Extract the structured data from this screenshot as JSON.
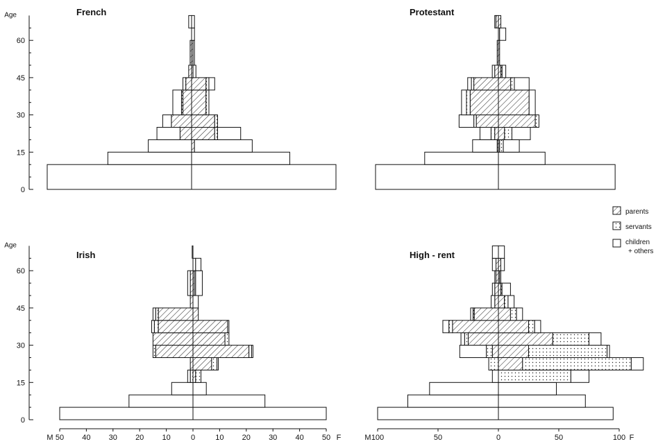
{
  "legend": {
    "items": [
      {
        "key": "parents",
        "label": "parents",
        "pattern": "hatch"
      },
      {
        "key": "servants",
        "label": "servants",
        "pattern": "dots"
      },
      {
        "key": "children",
        "label": "children",
        "label2": "+ others",
        "pattern": "empty"
      }
    ]
  },
  "colors": {
    "ink": "#111111",
    "background": "#ffffff"
  },
  "chart_data": [
    {
      "type": "bar",
      "subtype": "age-sex pyramid",
      "title": "French",
      "ylabel": "Age",
      "y_ticks": [
        0,
        15,
        30,
        45,
        60
      ],
      "ylim": [
        0,
        70
      ],
      "x_max": 50,
      "x_ticks": [],
      "groups": [
        {
          "age_start": 0,
          "M": {
            "parents": 0,
            "servants": 0,
            "children": 50
          },
          "F": {
            "parents": 0,
            "servants": 0,
            "children": 50
          }
        },
        {
          "age_start": 10,
          "M": {
            "parents": 0,
            "servants": 0,
            "children": 29
          },
          "F": {
            "parents": 0,
            "servants": 0,
            "children": 34
          }
        },
        {
          "age_start": 15,
          "M": {
            "parents": 0,
            "servants": 0,
            "children": 15
          },
          "F": {
            "parents": 1,
            "servants": 0,
            "children": 20
          }
        },
        {
          "age_start": 20,
          "M": {
            "parents": 4,
            "servants": 0,
            "children": 8
          },
          "F": {
            "parents": 8,
            "servants": 1,
            "children": 8
          }
        },
        {
          "age_start": 25,
          "M": {
            "parents": 7,
            "servants": 0,
            "children": 3
          },
          "F": {
            "parents": 8,
            "servants": 1,
            "children": 0
          }
        },
        {
          "age_start": 30,
          "M": {
            "parents": 3,
            "servants": 0.5,
            "children": 3
          },
          "F": {
            "parents": 5,
            "servants": 1,
            "children": 0
          }
        },
        {
          "age_start": 40,
          "M": {
            "parents": 2,
            "servants": 1,
            "children": 0
          },
          "F": {
            "parents": 5,
            "servants": 1,
            "children": 2
          }
        },
        {
          "age_start": 45,
          "M": {
            "parents": 1,
            "servants": 0,
            "children": 0
          },
          "F": {
            "parents": 0.5,
            "servants": 0,
            "children": 1
          }
        },
        {
          "age_start": 50,
          "M": {
            "parents": 0.5,
            "servants": 0,
            "children": 0
          },
          "F": {
            "parents": 0.5,
            "servants": 0,
            "children": 0.5
          }
        },
        {
          "age_start": 60,
          "M": {
            "parents": 0,
            "servants": 0,
            "children": 0
          },
          "F": {
            "parents": 0,
            "servants": 0,
            "children": 1
          }
        },
        {
          "age_start": 65,
          "M": {
            "parents": 0,
            "servants": 0,
            "children": 1
          },
          "F": {
            "parents": 0,
            "servants": 0,
            "children": 1
          }
        }
      ]
    },
    {
      "type": "bar",
      "subtype": "age-sex pyramid",
      "title": "Protestant",
      "ylabel": "",
      "y_ticks": [],
      "ylim": [
        0,
        70
      ],
      "x_max": 100,
      "x_ticks": [],
      "groups": [
        {
          "age_start": 0,
          "M": {
            "parents": 0,
            "servants": 0,
            "children": 100
          },
          "F": {
            "parents": 0,
            "servants": 0,
            "children": 95
          }
        },
        {
          "age_start": 10,
          "M": {
            "parents": 0,
            "servants": 0,
            "children": 60
          },
          "F": {
            "parents": 0,
            "servants": 0,
            "children": 38
          }
        },
        {
          "age_start": 15,
          "M": {
            "parents": 0,
            "servants": 1,
            "children": 20
          },
          "F": {
            "parents": 1,
            "servants": 3,
            "children": 13
          }
        },
        {
          "age_start": 20,
          "M": {
            "parents": 3,
            "servants": 3,
            "children": 9
          },
          "F": {
            "parents": 5,
            "servants": 6,
            "children": 15
          }
        },
        {
          "age_start": 25,
          "M": {
            "parents": 18,
            "servants": 2,
            "children": 12
          },
          "F": {
            "parents": 30,
            "servants": 3,
            "children": 0
          }
        },
        {
          "age_start": 30,
          "M": {
            "parents": 23,
            "servants": 3,
            "children": 4
          },
          "F": {
            "parents": 25,
            "servants": 0,
            "children": 5
          }
        },
        {
          "age_start": 40,
          "M": {
            "parents": 20,
            "servants": 2,
            "children": 3
          },
          "F": {
            "parents": 10,
            "servants": 3,
            "children": 12
          }
        },
        {
          "age_start": 45,
          "M": {
            "parents": 3,
            "servants": 0,
            "children": 2
          },
          "F": {
            "parents": 2,
            "servants": 1,
            "children": 3
          }
        },
        {
          "age_start": 50,
          "M": {
            "parents": 1,
            "servants": 0,
            "children": 0
          },
          "F": {
            "parents": 1,
            "servants": 0,
            "children": 0
          }
        },
        {
          "age_start": 60,
          "M": {
            "parents": 0,
            "servants": 0,
            "children": 0
          },
          "F": {
            "parents": 0,
            "servants": 1,
            "children": 5
          }
        },
        {
          "age_start": 65,
          "M": {
            "parents": 2,
            "servants": 0,
            "children": 1
          },
          "F": {
            "parents": 2,
            "servants": 0,
            "children": 0
          }
        }
      ]
    },
    {
      "type": "bar",
      "subtype": "age-sex pyramid",
      "title": "Irish",
      "xlabel": "",
      "ylabel": "Age",
      "y_ticks": [
        0,
        15,
        30,
        45,
        60
      ],
      "ylim": [
        0,
        70
      ],
      "x_max": 50,
      "x_ticks": [
        50,
        40,
        30,
        20,
        10,
        0,
        10,
        20,
        30,
        40,
        50
      ],
      "x_left_label": "M",
      "x_right_label": "F",
      "groups": [
        {
          "age_start": 0,
          "M": {
            "parents": 0,
            "servants": 0,
            "children": 50
          },
          "F": {
            "parents": 0,
            "servants": 0,
            "children": 50
          }
        },
        {
          "age_start": 5,
          "M": {
            "parents": 0,
            "servants": 0,
            "children": 24
          },
          "F": {
            "parents": 0,
            "servants": 0,
            "children": 27
          }
        },
        {
          "age_start": 10,
          "M": {
            "parents": 0,
            "servants": 0,
            "children": 8
          },
          "F": {
            "parents": 0,
            "servants": 0,
            "children": 5
          }
        },
        {
          "age_start": 15,
          "M": {
            "parents": 0,
            "servants": 1,
            "children": 1
          },
          "F": {
            "parents": 1,
            "servants": 2,
            "children": 0
          }
        },
        {
          "age_start": 20,
          "M": {
            "parents": 1,
            "servants": 0,
            "children": 0
          },
          "F": {
            "parents": 7,
            "servants": 2,
            "children": 0.5
          }
        },
        {
          "age_start": 25,
          "M": {
            "parents": 14,
            "servants": 1,
            "children": 0
          },
          "F": {
            "parents": 21,
            "servants": 1,
            "children": 0.5
          }
        },
        {
          "age_start": 30,
          "M": {
            "parents": 15,
            "servants": 0,
            "children": 0
          },
          "F": {
            "parents": 12,
            "servants": 1.5,
            "children": 0
          }
        },
        {
          "age_start": 35,
          "M": {
            "parents": 13,
            "servants": 1.5,
            "children": 1
          },
          "F": {
            "parents": 13,
            "servants": 0.5,
            "children": 0
          }
        },
        {
          "age_start": 40,
          "M": {
            "parents": 13,
            "servants": 1,
            "children": 1
          },
          "F": {
            "parents": 2,
            "servants": 0,
            "children": 0
          }
        },
        {
          "age_start": 45,
          "M": {
            "parents": 1,
            "servants": 0,
            "children": 0
          },
          "F": {
            "parents": 0,
            "servants": 0,
            "children": 2
          }
        },
        {
          "age_start": 50,
          "M": {
            "parents": 1,
            "servants": 0,
            "children": 1
          },
          "F": {
            "parents": 0.5,
            "servants": 0.5,
            "children": 2.5
          }
        },
        {
          "age_start": 60,
          "M": {
            "parents": 0,
            "servants": 0,
            "children": 0
          },
          "F": {
            "parents": 0,
            "servants": 1,
            "children": 2
          }
        },
        {
          "age_start": 65,
          "M": {
            "parents": 0,
            "servants": 0,
            "children": 0.3
          },
          "F": {
            "parents": 0,
            "servants": 0,
            "children": 0
          }
        }
      ]
    },
    {
      "type": "bar",
      "subtype": "age-sex pyramid",
      "title": "High - rent",
      "xlabel": "",
      "ylabel": "",
      "y_ticks": [],
      "ylim": [
        0,
        70
      ],
      "x_max": 100,
      "x_ticks": [
        100,
        50,
        0,
        50,
        100
      ],
      "x_left_label": "M",
      "x_right_label": "F",
      "groups": [
        {
          "age_start": 0,
          "M": {
            "parents": 0,
            "servants": 0,
            "children": 100
          },
          "F": {
            "parents": 0,
            "servants": 0,
            "children": 95
          }
        },
        {
          "age_start": 5,
          "M": {
            "parents": 0,
            "servants": 0,
            "children": 75
          },
          "F": {
            "parents": 0,
            "servants": 0,
            "children": 72
          }
        },
        {
          "age_start": 10,
          "M": {
            "parents": 0,
            "servants": 0,
            "children": 57
          },
          "F": {
            "parents": 0,
            "servants": 0,
            "children": 48
          }
        },
        {
          "age_start": 15,
          "M": {
            "parents": 0,
            "servants": 0,
            "children": 5
          },
          "F": {
            "parents": 0,
            "servants": 60,
            "children": 15
          }
        },
        {
          "age_start": 20,
          "M": {
            "parents": 0,
            "servants": 8,
            "children": 0
          },
          "F": {
            "parents": 20,
            "servants": 90,
            "children": 10
          }
        },
        {
          "age_start": 25,
          "M": {
            "parents": 5,
            "servants": 5,
            "children": 22
          },
          "F": {
            "parents": 25,
            "servants": 65,
            "children": 2
          }
        },
        {
          "age_start": 30,
          "M": {
            "parents": 25,
            "servants": 3,
            "children": 3
          },
          "F": {
            "parents": 45,
            "servants": 30,
            "children": 10
          }
        },
        {
          "age_start": 35,
          "M": {
            "parents": 38,
            "servants": 3,
            "children": 5
          },
          "F": {
            "parents": 25,
            "servants": 5,
            "children": 5
          }
        },
        {
          "age_start": 40,
          "M": {
            "parents": 20,
            "servants": 1,
            "children": 2
          },
          "F": {
            "parents": 10,
            "servants": 5,
            "children": 5
          }
        },
        {
          "age_start": 45,
          "M": {
            "parents": 3,
            "servants": 0,
            "children": 3
          },
          "F": {
            "parents": 5,
            "servants": 3,
            "children": 5
          }
        },
        {
          "age_start": 50,
          "M": {
            "parents": 3,
            "servants": 0,
            "children": 2
          },
          "F": {
            "parents": 2,
            "servants": 1,
            "children": 7
          }
        },
        {
          "age_start": 55,
          "M": {
            "parents": 2,
            "servants": 0,
            "children": 1
          },
          "F": {
            "parents": 1,
            "servants": 0,
            "children": 1
          }
        },
        {
          "age_start": 60,
          "M": {
            "parents": 2,
            "servants": 0,
            "children": 3
          },
          "F": {
            "parents": 2,
            "servants": 0,
            "children": 3
          }
        },
        {
          "age_start": 65,
          "M": {
            "parents": 0,
            "servants": 0,
            "children": 5
          },
          "F": {
            "parents": 0,
            "servants": 0,
            "children": 5
          }
        }
      ]
    }
  ]
}
